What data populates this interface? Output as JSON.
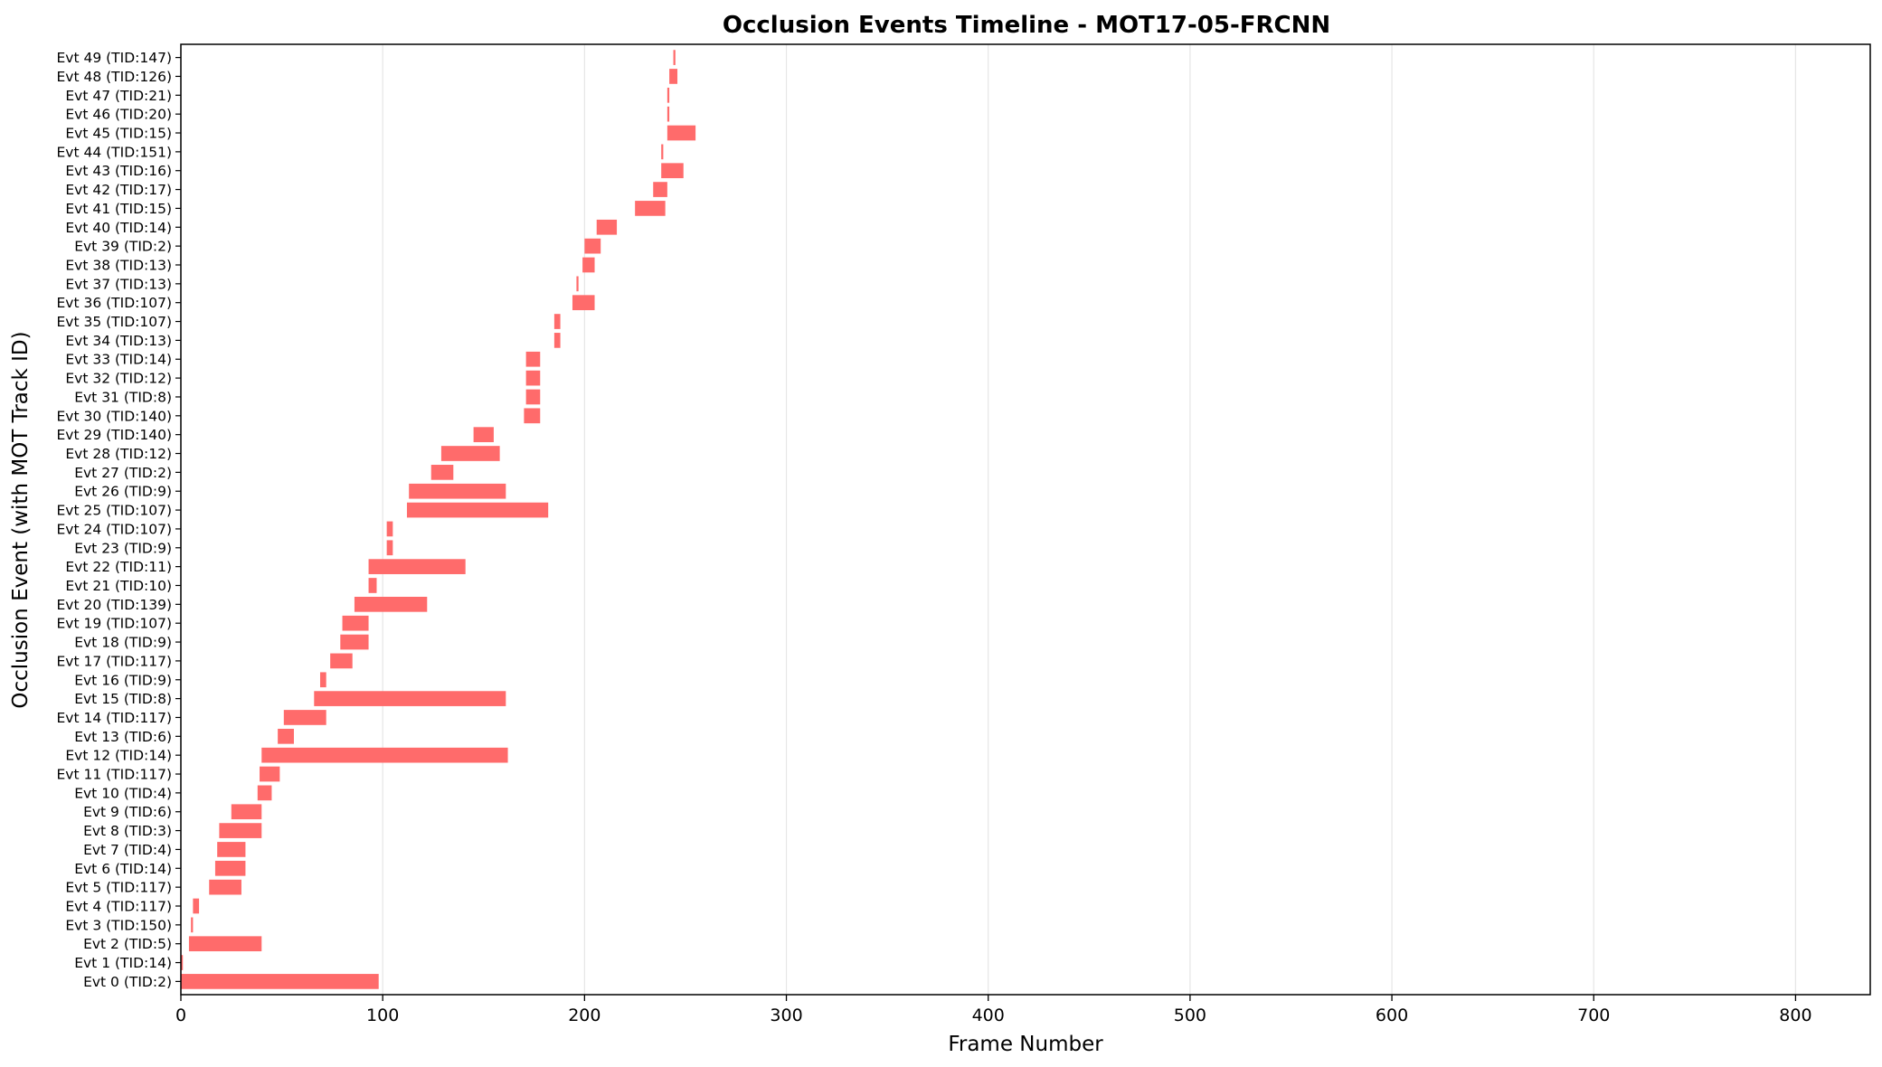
{
  "chart_data": {
    "type": "bar",
    "orientation": "horizontal-range",
    "title": "Occlusion Events Timeline - MOT17-05-FRCNN",
    "xlabel": "Frame Number",
    "ylabel": "Occlusion Event (with MOT Track ID)",
    "xlim": [
      0,
      837
    ],
    "xticks": [
      0,
      100,
      200,
      300,
      400,
      500,
      600,
      700,
      800
    ],
    "grid": "x",
    "bar_color": "#ff6b6b",
    "events": [
      {
        "label": "Evt 0 (TID:2)",
        "start": 0,
        "end": 98
      },
      {
        "label": "Evt 1 (TID:14)",
        "start": 0,
        "end": 1
      },
      {
        "label": "Evt 2 (TID:5)",
        "start": 4,
        "end": 40
      },
      {
        "label": "Evt 3 (TID:150)",
        "start": 5,
        "end": 6
      },
      {
        "label": "Evt 4 (TID:117)",
        "start": 6,
        "end": 9
      },
      {
        "label": "Evt 5 (TID:117)",
        "start": 14,
        "end": 30
      },
      {
        "label": "Evt 6 (TID:14)",
        "start": 17,
        "end": 32
      },
      {
        "label": "Evt 7 (TID:4)",
        "start": 18,
        "end": 32
      },
      {
        "label": "Evt 8 (TID:3)",
        "start": 19,
        "end": 40
      },
      {
        "label": "Evt 9 (TID:6)",
        "start": 25,
        "end": 40
      },
      {
        "label": "Evt 10 (TID:4)",
        "start": 38,
        "end": 45
      },
      {
        "label": "Evt 11 (TID:117)",
        "start": 39,
        "end": 49
      },
      {
        "label": "Evt 12 (TID:14)",
        "start": 40,
        "end": 162
      },
      {
        "label": "Evt 13 (TID:6)",
        "start": 48,
        "end": 56
      },
      {
        "label": "Evt 14 (TID:117)",
        "start": 51,
        "end": 72
      },
      {
        "label": "Evt 15 (TID:8)",
        "start": 66,
        "end": 161
      },
      {
        "label": "Evt 16 (TID:9)",
        "start": 69,
        "end": 72
      },
      {
        "label": "Evt 17 (TID:117)",
        "start": 74,
        "end": 85
      },
      {
        "label": "Evt 18 (TID:9)",
        "start": 79,
        "end": 93
      },
      {
        "label": "Evt 19 (TID:107)",
        "start": 80,
        "end": 93
      },
      {
        "label": "Evt 20 (TID:139)",
        "start": 86,
        "end": 122
      },
      {
        "label": "Evt 21 (TID:10)",
        "start": 93,
        "end": 97
      },
      {
        "label": "Evt 22 (TID:11)",
        "start": 93,
        "end": 141
      },
      {
        "label": "Evt 23 (TID:9)",
        "start": 102,
        "end": 105
      },
      {
        "label": "Evt 24 (TID:107)",
        "start": 102,
        "end": 105
      },
      {
        "label": "Evt 25 (TID:107)",
        "start": 112,
        "end": 182
      },
      {
        "label": "Evt 26 (TID:9)",
        "start": 113,
        "end": 161
      },
      {
        "label": "Evt 27 (TID:2)",
        "start": 124,
        "end": 135
      },
      {
        "label": "Evt 28 (TID:12)",
        "start": 129,
        "end": 158
      },
      {
        "label": "Evt 29 (TID:140)",
        "start": 145,
        "end": 155
      },
      {
        "label": "Evt 30 (TID:140)",
        "start": 170,
        "end": 178
      },
      {
        "label": "Evt 31 (TID:8)",
        "start": 171,
        "end": 178
      },
      {
        "label": "Evt 32 (TID:12)",
        "start": 171,
        "end": 178
      },
      {
        "label": "Evt 33 (TID:14)",
        "start": 171,
        "end": 178
      },
      {
        "label": "Evt 34 (TID:13)",
        "start": 185,
        "end": 188
      },
      {
        "label": "Evt 35 (TID:107)",
        "start": 185,
        "end": 188
      },
      {
        "label": "Evt 36 (TID:107)",
        "start": 194,
        "end": 205
      },
      {
        "label": "Evt 37 (TID:13)",
        "start": 196,
        "end": 197
      },
      {
        "label": "Evt 38 (TID:13)",
        "start": 199,
        "end": 205
      },
      {
        "label": "Evt 39 (TID:2)",
        "start": 200,
        "end": 208
      },
      {
        "label": "Evt 40 (TID:14)",
        "start": 206,
        "end": 216
      },
      {
        "label": "Evt 41 (TID:15)",
        "start": 225,
        "end": 240
      },
      {
        "label": "Evt 42 (TID:17)",
        "start": 234,
        "end": 241
      },
      {
        "label": "Evt 43 (TID:16)",
        "start": 238,
        "end": 249
      },
      {
        "label": "Evt 44 (TID:151)",
        "start": 238,
        "end": 239
      },
      {
        "label": "Evt 45 (TID:15)",
        "start": 241,
        "end": 255
      },
      {
        "label": "Evt 46 (TID:20)",
        "start": 241,
        "end": 242
      },
      {
        "label": "Evt 47 (TID:21)",
        "start": 241,
        "end": 242
      },
      {
        "label": "Evt 48 (TID:126)",
        "start": 242,
        "end": 246
      },
      {
        "label": "Evt 49 (TID:147)",
        "start": 244,
        "end": 245
      }
    ]
  }
}
